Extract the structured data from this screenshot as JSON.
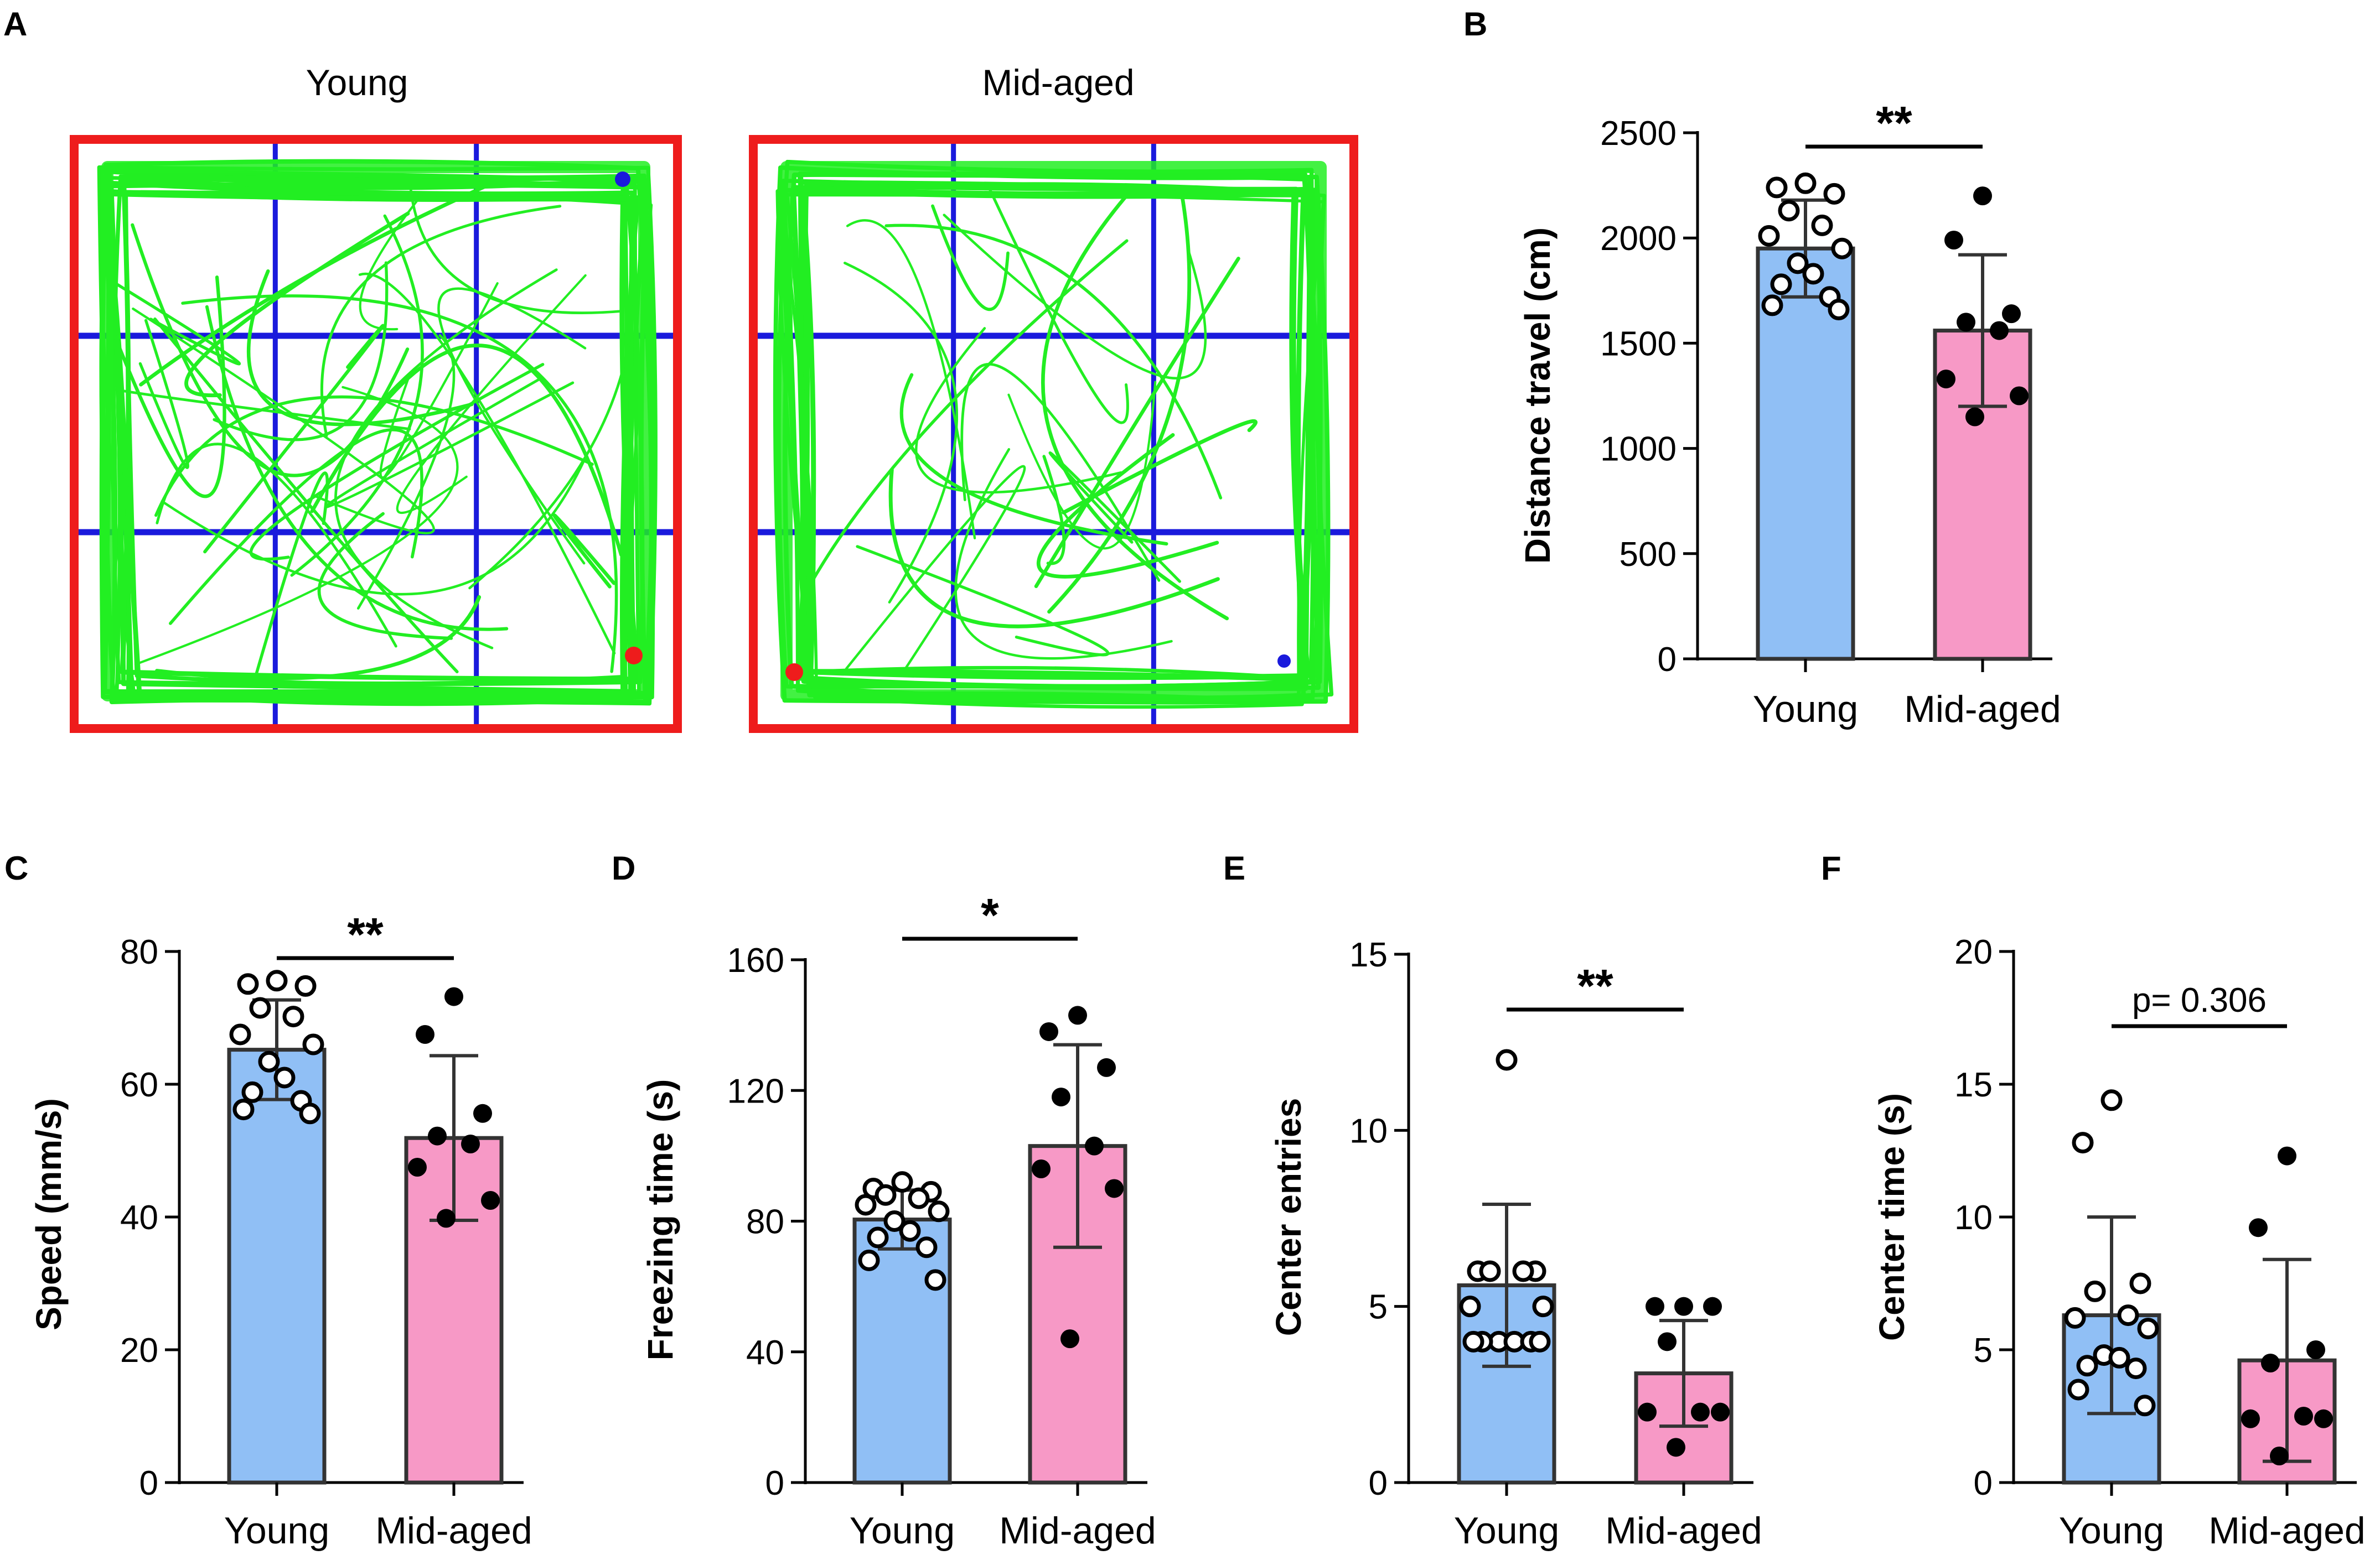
{
  "panel_a": {
    "label": "A",
    "arenas": [
      {
        "title": "Young"
      },
      {
        "title": "Mid-aged"
      }
    ]
  },
  "colors": {
    "young_fill": "#90bff5",
    "midaged_fill": "#f799c6",
    "axis": "#000000",
    "bar_stroke": "#333333",
    "arena_border": "#ee1c1c",
    "arena_grid": "#1a1adc",
    "track": "#22ee22"
  },
  "chart_data": [
    {
      "panel": "B",
      "type": "bar",
      "categories": [
        "Young",
        "Mid-aged"
      ],
      "ylabel": "Distance travel (cm)",
      "ylim": [
        0,
        2500
      ],
      "yticks": [
        0,
        500,
        1000,
        1500,
        2000,
        2500
      ],
      "means": [
        1950,
        1560
      ],
      "sd": [
        230,
        360
      ],
      "points": [
        [
          2260,
          2240,
          2210,
          2130,
          2060,
          2010,
          1950,
          1880,
          1830,
          1780,
          1720,
          1680,
          1660
        ],
        [
          2200,
          1990,
          1640,
          1600,
          1560,
          1330,
          1250,
          1150
        ]
      ],
      "significance": "**"
    },
    {
      "panel": "C",
      "type": "bar",
      "categories": [
        "Young",
        "Mid-aged"
      ],
      "ylabel": "Speed (mm/s)",
      "ylim": [
        0,
        80
      ],
      "yticks": [
        0,
        20,
        40,
        60,
        80
      ],
      "means": [
        65.2,
        51.9
      ],
      "sd": [
        7.5,
        12.4
      ],
      "points": [
        [
          75.6,
          75.1,
          74.8,
          71.5,
          70.2,
          67.5,
          66.0,
          63.4,
          61.0,
          58.8,
          57.5,
          56.2,
          55.6
        ],
        [
          73.2,
          67.5,
          55.6,
          52.2,
          51.0,
          47.5,
          42.5,
          39.8
        ]
      ],
      "significance": "**"
    },
    {
      "panel": "D",
      "type": "bar",
      "categories": [
        "Young",
        "Mid-aged"
      ],
      "ylabel": "Freezing time (s)",
      "ylim": [
        0,
        160
      ],
      "yticks": [
        0,
        40,
        80,
        120,
        160
      ],
      "means": [
        80.5,
        103.0
      ],
      "sd": [
        9.0,
        31.0
      ],
      "points": [
        [
          92,
          90,
          89,
          88,
          87,
          85,
          83,
          80,
          77,
          75,
          72,
          68,
          62
        ],
        [
          143,
          138,
          127,
          118,
          103,
          96,
          90,
          44
        ]
      ],
      "significance": "*"
    },
    {
      "panel": "E",
      "type": "bar",
      "categories": [
        "Young",
        "Mid-aged"
      ],
      "ylabel": "Center entries",
      "ylim": [
        0,
        15
      ],
      "yticks": [
        0,
        5,
        10,
        15
      ],
      "means": [
        5.6,
        3.1
      ],
      "sd": [
        2.3,
        1.5
      ],
      "points": [
        [
          12,
          6,
          6,
          6,
          6,
          5,
          5,
          4,
          4,
          4,
          4,
          4,
          4
        ],
        [
          5,
          5,
          5,
          4,
          2,
          2,
          2,
          1
        ]
      ],
      "significance": "**"
    },
    {
      "panel": "F",
      "type": "bar",
      "categories": [
        "Young",
        "Mid-aged"
      ],
      "ylabel": "Center time (s)",
      "ylim": [
        0,
        20
      ],
      "yticks": [
        0,
        5,
        10,
        15,
        20
      ],
      "means": [
        6.3,
        4.6
      ],
      "sd": [
        3.7,
        3.8
      ],
      "points": [
        [
          14.4,
          12.8,
          7.5,
          7.2,
          6.3,
          6.2,
          5.8,
          4.8,
          4.7,
          4.4,
          4.3,
          3.5,
          2.9
        ],
        [
          12.3,
          9.6,
          5.0,
          4.5,
          2.5,
          2.4,
          2.4,
          1.0
        ]
      ],
      "significance": "p= 0.306"
    }
  ]
}
